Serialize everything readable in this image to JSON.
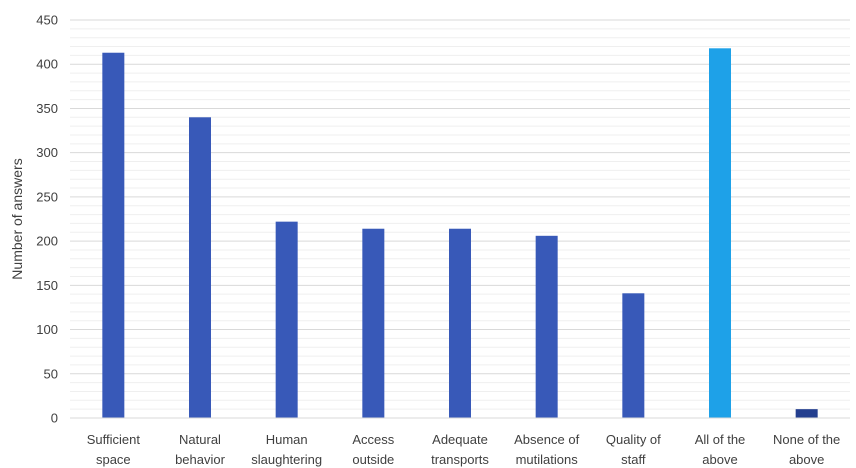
{
  "chart_data": {
    "type": "bar",
    "categories": [
      [
        "Sufficient",
        "space"
      ],
      [
        "Natural",
        "behavior"
      ],
      [
        "Human",
        "slaughtering"
      ],
      [
        "Access",
        "outside"
      ],
      [
        "Adequate",
        "transports"
      ],
      [
        "Absence of",
        "mutilations"
      ],
      [
        "Quality of",
        "staff"
      ],
      [
        "All of the",
        "above"
      ],
      [
        "None of the",
        "above"
      ]
    ],
    "values": [
      413,
      340,
      222,
      214,
      214,
      206,
      141,
      418,
      10
    ],
    "bar_colors": [
      "#3859b8",
      "#3859b8",
      "#3859b8",
      "#3859b8",
      "#3859b8",
      "#3859b8",
      "#3859b8",
      "#1ea1e8",
      "#243f8f"
    ],
    "title": "",
    "xlabel": "",
    "ylabel": "Number of answers",
    "ylim": [
      0,
      450
    ],
    "yticks": [
      0,
      50,
      100,
      150,
      200,
      250,
      300,
      350,
      400,
      450
    ],
    "grid": true,
    "gridline_color": "#d9d9d9",
    "legend": "none"
  }
}
